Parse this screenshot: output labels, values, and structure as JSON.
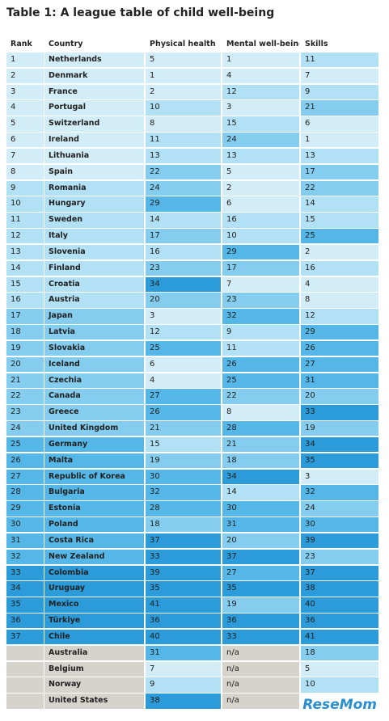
{
  "title": "Table 1: A league table of child well-being",
  "table": {
    "header": [
      "Rank",
      "Country",
      "Physical health",
      "Mental well-being",
      "Skills"
    ],
    "rows": [
      [
        1,
        "Netherlands",
        5,
        1,
        11
      ],
      [
        2,
        "Denmark",
        1,
        4,
        7
      ],
      [
        3,
        "France",
        2,
        12,
        9
      ],
      [
        4,
        "Portugal",
        10,
        3,
        21
      ],
      [
        5,
        "Switzerland",
        8,
        15,
        6
      ],
      [
        6,
        "Ireland",
        11,
        24,
        1
      ],
      [
        7,
        "Lithuania",
        13,
        13,
        13
      ],
      [
        8,
        "Spain",
        22,
        5,
        17
      ],
      [
        9,
        "Romania",
        24,
        2,
        22
      ],
      [
        10,
        "Hungary",
        29,
        6,
        14
      ],
      [
        11,
        "Sweden",
        14,
        16,
        15
      ],
      [
        12,
        "Italy",
        17,
        10,
        25
      ],
      [
        13,
        "Slovenia",
        16,
        29,
        2
      ],
      [
        14,
        "Finland",
        23,
        17,
        16
      ],
      [
        15,
        "Croatia",
        34,
        7,
        4
      ],
      [
        16,
        "Austria",
        20,
        23,
        8
      ],
      [
        17,
        "Japan",
        3,
        32,
        12
      ],
      [
        18,
        "Latvia",
        12,
        9,
        29
      ],
      [
        19,
        "Slovakia",
        25,
        11,
        26
      ],
      [
        20,
        "Iceland",
        6,
        26,
        27
      ],
      [
        21,
        "Czechia",
        4,
        25,
        31
      ],
      [
        22,
        "Canada",
        27,
        22,
        20
      ],
      [
        23,
        "Greece",
        26,
        8,
        33
      ],
      [
        24,
        "United Kingdom",
        21,
        28,
        19
      ],
      [
        25,
        "Germany",
        15,
        21,
        34
      ],
      [
        26,
        "Malta",
        19,
        18,
        35
      ],
      [
        27,
        "Republic of Korea",
        30,
        34,
        3
      ],
      [
        28,
        "Bulgaria",
        32,
        14,
        32
      ],
      [
        29,
        "Estonia",
        28,
        30,
        24
      ],
      [
        30,
        "Poland",
        18,
        31,
        30
      ],
      [
        31,
        "Costa Rica",
        37,
        20,
        39
      ],
      [
        32,
        "New Zealand",
        33,
        37,
        23
      ],
      [
        33,
        "Colombia",
        39,
        27,
        37
      ],
      [
        34,
        "Uruguay",
        35,
        35,
        38
      ],
      [
        35,
        "Mexico",
        41,
        19,
        40
      ],
      [
        36,
        "Türkiye",
        36,
        36,
        36
      ],
      [
        37,
        "Chile",
        40,
        33,
        41
      ],
      [
        null,
        "Australia",
        31,
        "n/a",
        18
      ],
      [
        null,
        "Belgium",
        7,
        "n/a",
        5
      ],
      [
        null,
        "Norway",
        9,
        "n/a",
        10
      ],
      [
        null,
        "United States",
        38,
        "n/a",
        null
      ]
    ]
  },
  "watermark": "ReseMom"
}
